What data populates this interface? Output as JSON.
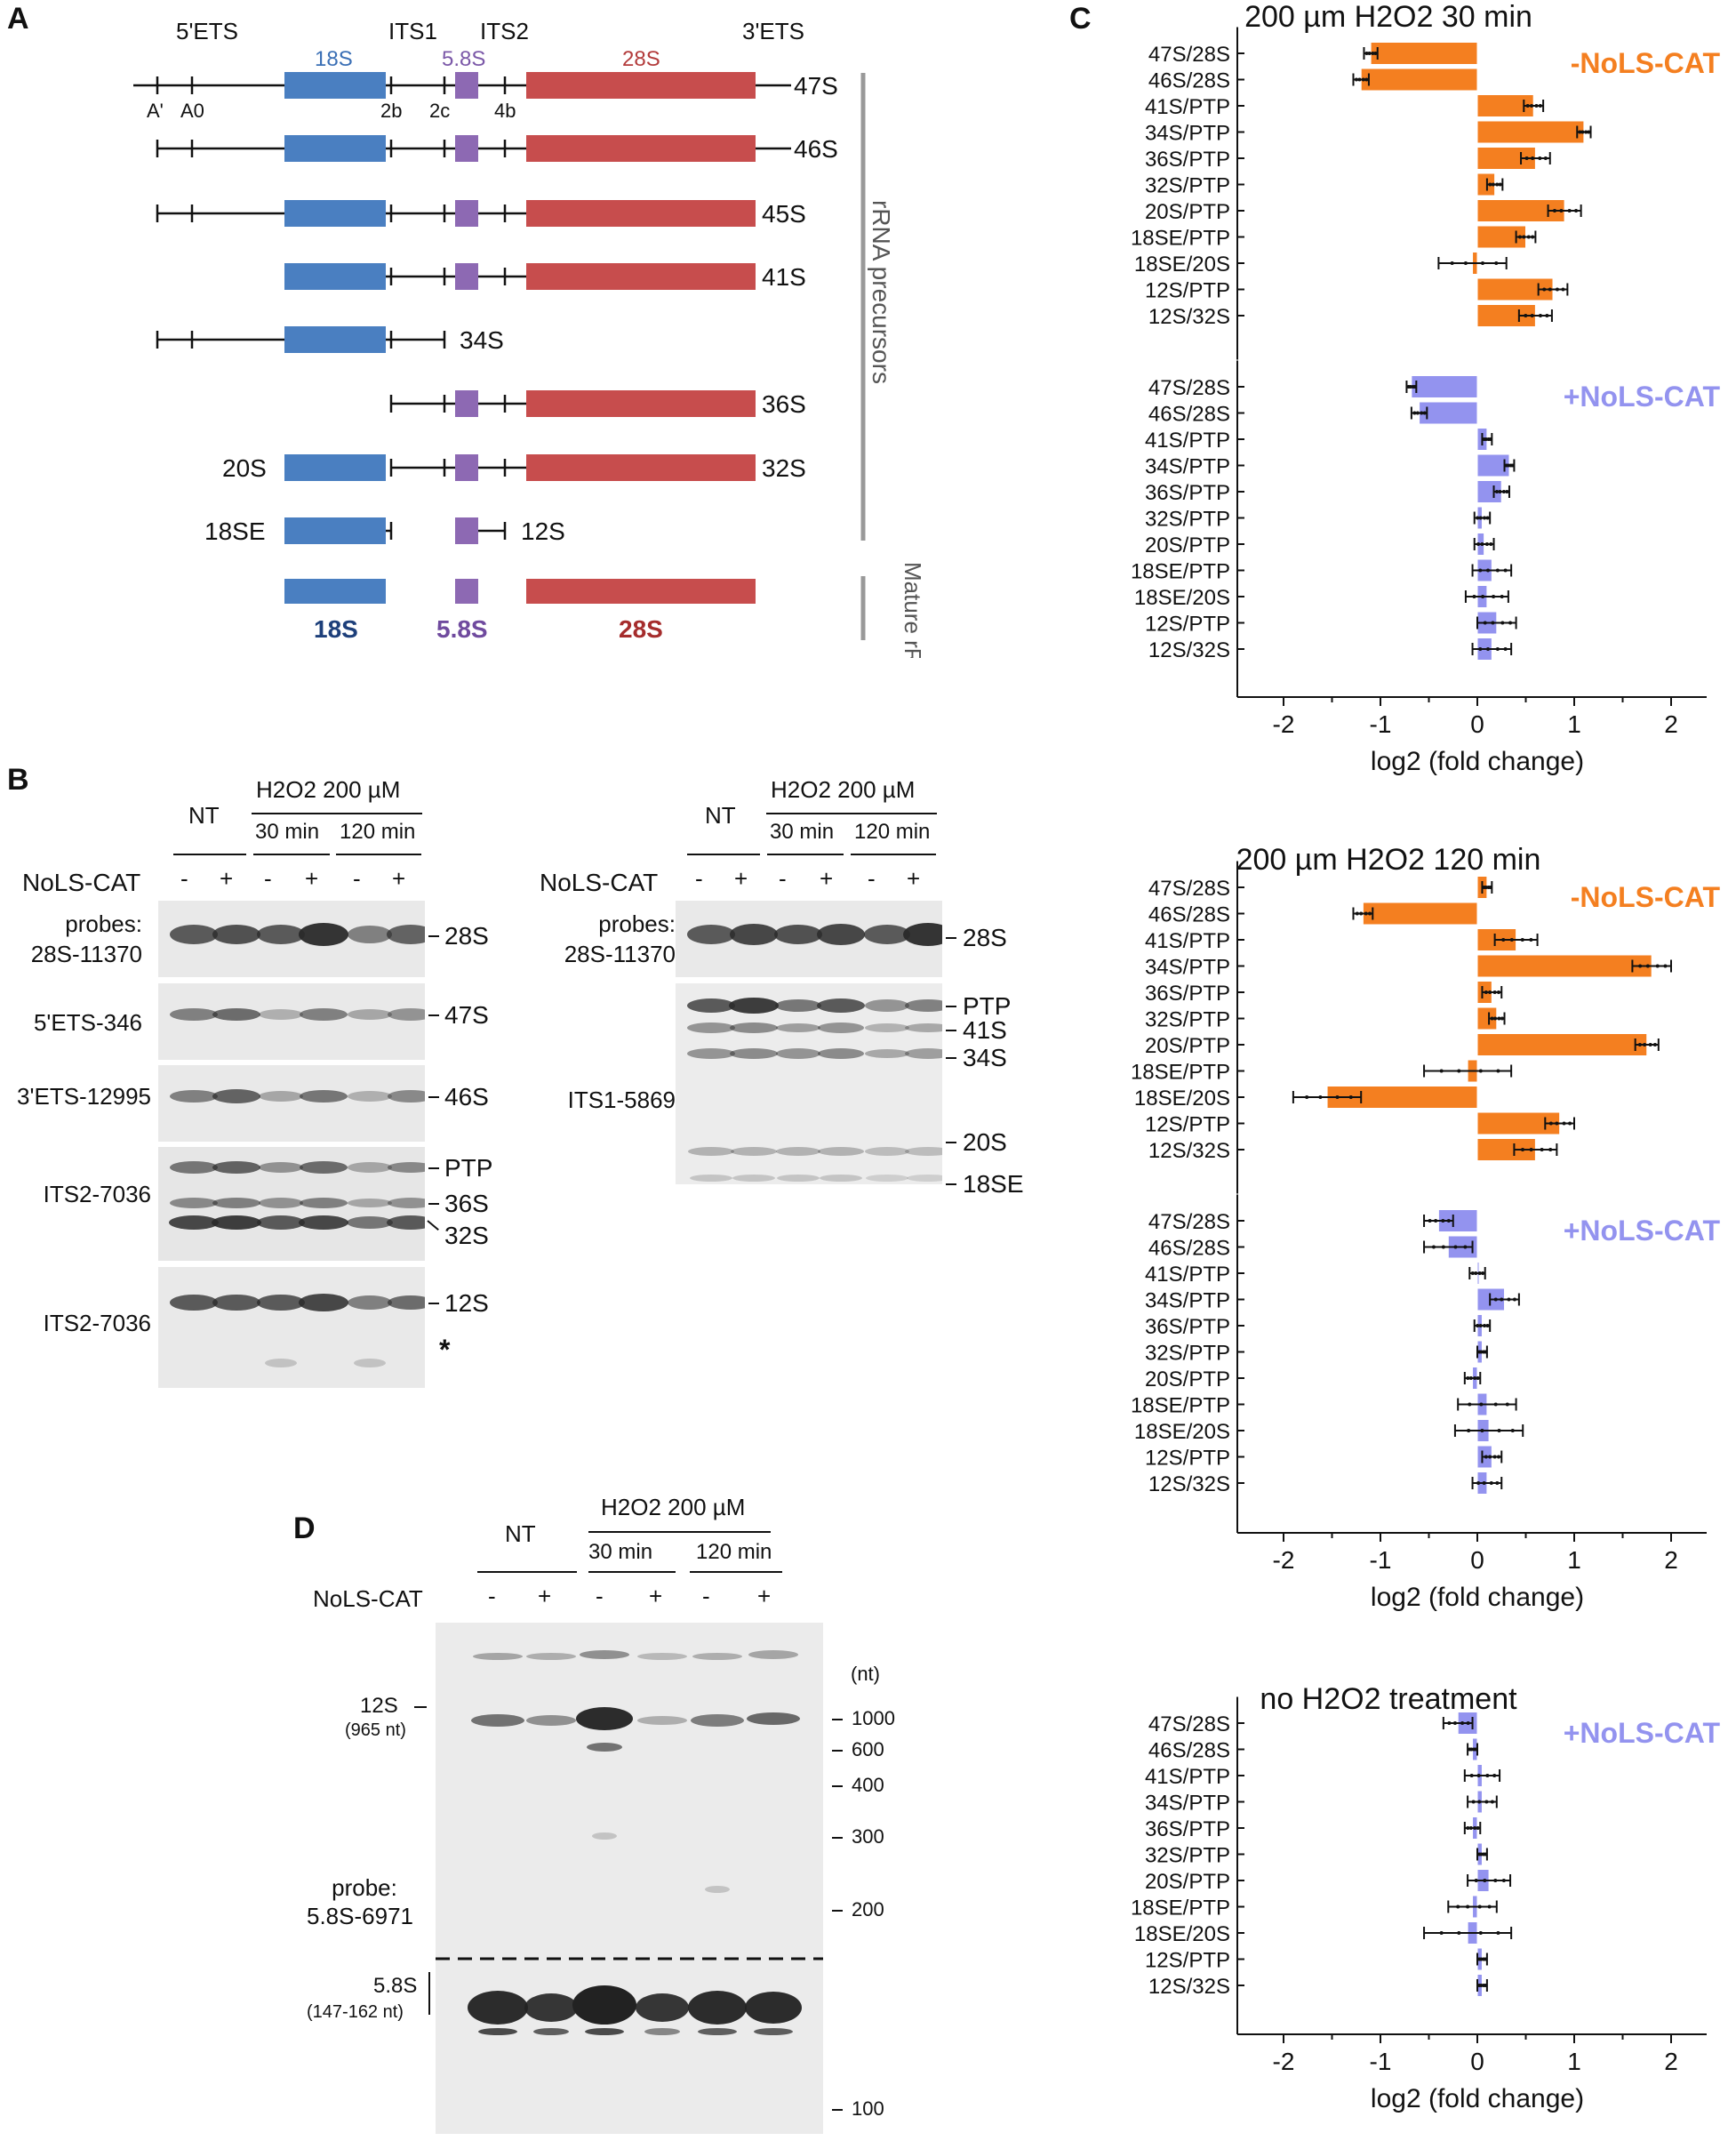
{
  "panels": {
    "A": "A",
    "B": "B",
    "C": "C",
    "D": "D"
  },
  "panelA": {
    "regions": [
      "5'ETS",
      "ITS1",
      "ITS2",
      "3'ETS"
    ],
    "segments": {
      "s18": "18S",
      "s58": "5.8S",
      "s28": "28S"
    },
    "sites": [
      "A'",
      "A0",
      "2b",
      "2c",
      "4b"
    ],
    "precursors": [
      "47S",
      "46S",
      "45S",
      "41S",
      "34S",
      "36S",
      "20S",
      "32S",
      "18SE",
      "12S"
    ],
    "mature": [
      "18S",
      "5.8S",
      "28S"
    ],
    "precursor_label": "rRNA precursors",
    "mature_label": "Mature rRNA",
    "colors": {
      "s18": "#4a7fc1",
      "s58": "#8d69b3",
      "s28": "#c74d4d"
    }
  },
  "panelB": {
    "left": {
      "nt": "NT",
      "treatment": "H2O2 200 µM",
      "times": [
        "30 min",
        "120 min"
      ],
      "nols": "NoLS-CAT",
      "signs": [
        "-",
        "+",
        "-",
        "+",
        "-",
        "+"
      ],
      "probe_titles": [
        "probes:",
        "28S-11370"
      ],
      "probes": [
        "5'ETS-346",
        "3'ETS-12995",
        "ITS2-7036",
        "ITS2-7036"
      ],
      "bands": [
        "28S",
        "47S",
        "46S",
        "PTP",
        "36S",
        "32S",
        "12S",
        "*"
      ]
    },
    "right": {
      "nt": "NT",
      "treatment": "H2O2 200 µM",
      "times": [
        "30 min",
        "120 min"
      ],
      "nols": "NoLS-CAT",
      "signs": [
        "-",
        "+",
        "-",
        "+",
        "-",
        "+"
      ],
      "probe_titles": [
        "probes:",
        "28S-11370"
      ],
      "probes": [
        "ITS1-5869"
      ],
      "bands": [
        "28S",
        "PTP",
        "41S",
        "34S",
        "20S",
        "18SE"
      ]
    }
  },
  "panelD": {
    "nt": "NT",
    "treatment": "H2O2 200 µM",
    "times": [
      "30 min",
      "120 min"
    ],
    "nols": "NoLS-CAT",
    "signs": [
      "-",
      "+",
      "-",
      "+",
      "-",
      "+"
    ],
    "unit": "(nt)",
    "markers": [
      "1000",
      "600",
      "400",
      "300",
      "200",
      "100"
    ],
    "band12s": "12S",
    "band12s_len": "(965 nt)",
    "probe": [
      "probe:",
      "5.8S-6971"
    ],
    "band58s": "5.8S",
    "band58s_len": "(147-162 nt)"
  },
  "chart_data": [
    {
      "type": "bar",
      "orientation": "horizontal",
      "title": "200 µm H2O2 30 min",
      "condition": "-NoLS-CAT",
      "color": "#f47f20",
      "categories": [
        "47S/28S",
        "46S/28S",
        "41S/PTP",
        "34S/PTP",
        "36S/PTP",
        "32S/PTP",
        "20S/PTP",
        "18SE/PTP",
        "18SE/20S",
        "12S/PTP",
        "12S/32S"
      ],
      "values": [
        -1.1,
        -1.2,
        0.58,
        1.1,
        0.6,
        0.18,
        0.9,
        0.5,
        -0.05,
        0.78,
        0.6
      ],
      "errors": [
        0.07,
        0.08,
        0.1,
        0.07,
        0.15,
        0.08,
        0.17,
        0.1,
        0.35,
        0.15,
        0.17
      ]
    },
    {
      "type": "bar",
      "orientation": "horizontal",
      "condition": "+NoLS-CAT",
      "color": "#9393ef",
      "categories": [
        "47S/28S",
        "46S/28S",
        "41S/PTP",
        "34S/PTP",
        "36S/PTP",
        "32S/PTP",
        "20S/PTP",
        "18SE/PTP",
        "18SE/20S",
        "12S/PTP",
        "12S/32S"
      ],
      "values": [
        -0.68,
        -0.6,
        0.1,
        0.33,
        0.25,
        0.05,
        0.07,
        0.15,
        0.1,
        0.2,
        0.15
      ],
      "errors": [
        0.05,
        0.08,
        0.05,
        0.05,
        0.08,
        0.08,
        0.1,
        0.2,
        0.22,
        0.2,
        0.2
      ],
      "xlabel": "log2 (fold change)",
      "xticks": [
        "-2",
        "-1",
        "0",
        "1",
        "2"
      ],
      "xlim": [
        -2.5,
        2.5
      ]
    },
    {
      "type": "bar",
      "orientation": "horizontal",
      "title": "200 µm H2O2 120 min",
      "condition": "-NoLS-CAT",
      "color": "#f47f20",
      "categories": [
        "47S/28S",
        "46S/28S",
        "41S/PTP",
        "34S/PTP",
        "36S/PTP",
        "32S/PTP",
        "20S/PTP",
        "18SE/PTP",
        "18SE/20S",
        "12S/PTP",
        "12S/32S"
      ],
      "values": [
        0.1,
        -1.18,
        0.4,
        1.8,
        0.15,
        0.2,
        1.75,
        -0.1,
        -1.55,
        0.85,
        0.6
      ],
      "errors": [
        0.05,
        0.1,
        0.22,
        0.2,
        0.1,
        0.08,
        0.12,
        0.45,
        0.35,
        0.15,
        0.22
      ]
    },
    {
      "type": "bar",
      "orientation": "horizontal",
      "condition": "+NoLS-CAT",
      "color": "#9393ef",
      "categories": [
        "47S/28S",
        "46S/28S",
        "41S/PTP",
        "34S/PTP",
        "36S/PTP",
        "32S/PTP",
        "20S/PTP",
        "18SE/PTP",
        "18SE/20S",
        "12S/PTP",
        "12S/32S"
      ],
      "values": [
        -0.4,
        -0.3,
        0.0,
        0.28,
        0.05,
        0.05,
        -0.05,
        0.1,
        0.12,
        0.15,
        0.1
      ],
      "errors": [
        0.15,
        0.25,
        0.08,
        0.15,
        0.08,
        0.05,
        0.08,
        0.3,
        0.35,
        0.1,
        0.15
      ],
      "xlabel": "log2 (fold change)",
      "xticks": [
        "-2",
        "-1",
        "0",
        "1",
        "2"
      ],
      "xlim": [
        -2.5,
        2.5
      ]
    },
    {
      "type": "bar",
      "orientation": "horizontal",
      "title": "no H2O2 treatment",
      "condition": "+NoLS-CAT",
      "color": "#9393ef",
      "categories": [
        "47S/28S",
        "46S/28S",
        "41S/PTP",
        "34S/PTP",
        "36S/PTP",
        "32S/PTP",
        "20S/PTP",
        "18SE/PTP",
        "18SE/20S",
        "12S/PTP",
        "12S/32S"
      ],
      "values": [
        -0.2,
        -0.05,
        0.05,
        0.05,
        -0.05,
        0.05,
        0.12,
        -0.05,
        -0.1,
        0.05,
        0.05
      ],
      "errors": [
        0.15,
        0.05,
        0.18,
        0.15,
        0.08,
        0.05,
        0.22,
        0.25,
        0.45,
        0.05,
        0.05
      ],
      "xlabel": "log2 (fold change)",
      "xticks": [
        "-2",
        "-1",
        "0",
        "1",
        "2"
      ],
      "xlim": [
        -2.5,
        2.5
      ]
    }
  ]
}
